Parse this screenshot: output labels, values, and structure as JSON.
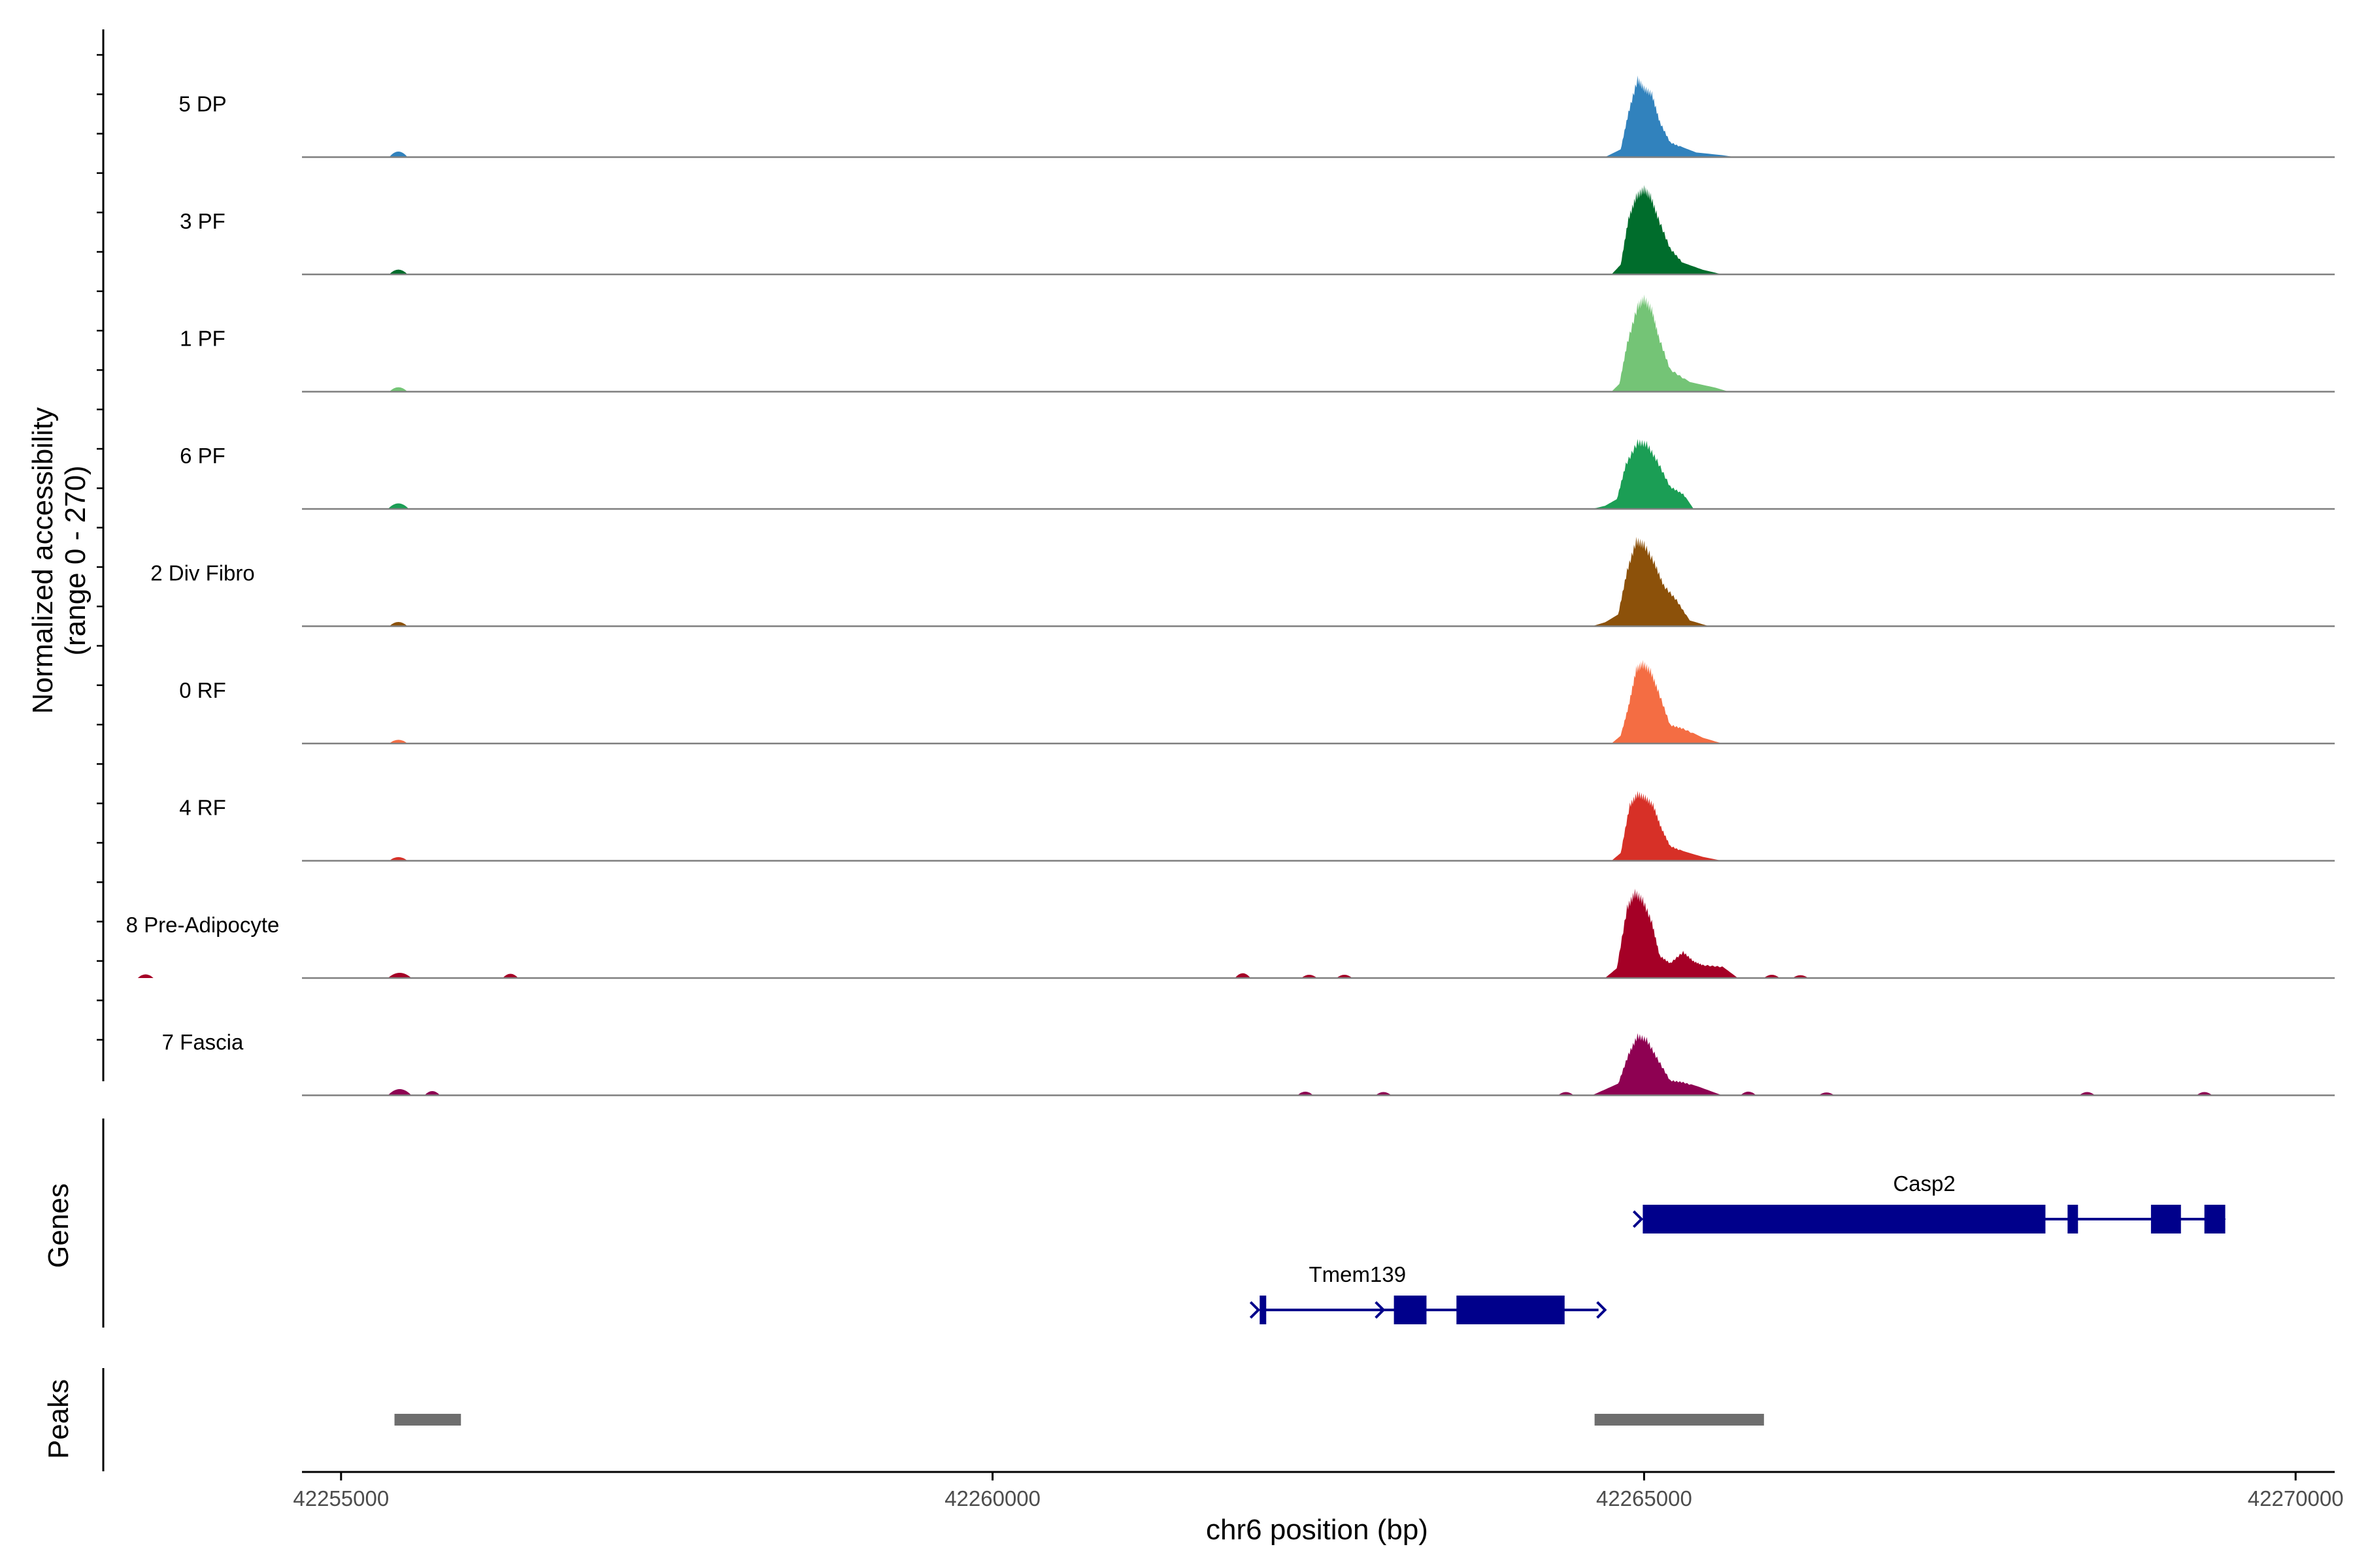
{
  "chart_data": {
    "type": "area",
    "title": "",
    "chromosome": "chr6",
    "xlabel": "chr6 position (bp)",
    "xlim": [
      42254700,
      42270300
    ],
    "x_ticks": [
      42255000,
      42260000,
      42265000,
      42270000
    ],
    "x_tick_labels": [
      "42255000",
      "42260000",
      "42265000",
      "42270000"
    ],
    "coverage": {
      "ylabel_line1": "Normalized accessibility",
      "ylabel_line2": "(range 0 - 270)",
      "ylim": [
        0,
        270
      ],
      "series": [
        {
          "name": "5 DP",
          "color": "#3182BD",
          "points": [
            [
              42264700,
              0
            ],
            [
              42264820,
              20
            ],
            [
              42264880,
              120
            ],
            [
              42264950,
              210
            ],
            [
              42265000,
              185
            ],
            [
              42265060,
              170
            ],
            [
              42265120,
              95
            ],
            [
              42265200,
              40
            ],
            [
              42265300,
              25
            ],
            [
              42265400,
              12
            ],
            [
              42265600,
              5
            ],
            [
              42265700,
              0
            ]
          ],
          "small_peaks": [
            [
              42255440,
              22,
              70
            ]
          ]
        },
        {
          "name": "3 PF",
          "color": "#006D2C",
          "points": [
            [
              42264750,
              0
            ],
            [
              42264820,
              25
            ],
            [
              42264880,
              150
            ],
            [
              42264940,
              210
            ],
            [
              42265000,
              230
            ],
            [
              42265050,
              210
            ],
            [
              42265110,
              150
            ],
            [
              42265200,
              70
            ],
            [
              42265300,
              30
            ],
            [
              42265450,
              12
            ],
            [
              42265600,
              0
            ]
          ],
          "small_peaks": [
            [
              42255440,
              18,
              70
            ]
          ]
        },
        {
          "name": "1 PF",
          "color": "#74C476",
          "points": [
            [
              42264750,
              0
            ],
            [
              42264810,
              20
            ],
            [
              42264870,
              130
            ],
            [
              42264950,
              230
            ],
            [
              42265000,
              250
            ],
            [
              42265060,
              220
            ],
            [
              42265110,
              150
            ],
            [
              42265200,
              60
            ],
            [
              42265350,
              25
            ],
            [
              42265550,
              10
            ],
            [
              42265650,
              0
            ]
          ],
          "small_peaks": [
            [
              42255440,
              16,
              70
            ]
          ]
        },
        {
          "name": "6 PF",
          "color": "#1B9E55",
          "points": [
            [
              42264600,
              0
            ],
            [
              42264700,
              8
            ],
            [
              42264790,
              25
            ],
            [
              42264860,
              120
            ],
            [
              42264950,
              180
            ],
            [
              42265020,
              175
            ],
            [
              42265100,
              130
            ],
            [
              42265200,
              60
            ],
            [
              42265300,
              40
            ],
            [
              42265380,
              0
            ]
          ],
          "small_peaks": [
            [
              42255440,
              22,
              80
            ]
          ]
        },
        {
          "name": "2 Div Fibro",
          "color": "#8C510A",
          "points": [
            [
              42264600,
              0
            ],
            [
              42264700,
              10
            ],
            [
              42264800,
              30
            ],
            [
              42264870,
              150
            ],
            [
              42264940,
              230
            ],
            [
              42265000,
              220
            ],
            [
              42265080,
              170
            ],
            [
              42265150,
              110
            ],
            [
              42265250,
              70
            ],
            [
              42265350,
              15
            ],
            [
              42265500,
              0
            ]
          ],
          "small_peaks": [
            [
              42255440,
              15,
              70
            ]
          ]
        },
        {
          "name": "0 RF",
          "color": "#F46D43",
          "points": [
            [
              42264750,
              0
            ],
            [
              42264820,
              20
            ],
            [
              42264880,
              100
            ],
            [
              42264940,
              200
            ],
            [
              42264990,
              215
            ],
            [
              42265050,
              195
            ],
            [
              42265110,
              140
            ],
            [
              42265200,
              50
            ],
            [
              42265300,
              40
            ],
            [
              42265450,
              15
            ],
            [
              42265600,
              0
            ]
          ],
          "small_peaks": [
            [
              42255440,
              12,
              70
            ]
          ]
        },
        {
          "name": "4 RF",
          "color": "#D73027",
          "points": [
            [
              42264750,
              0
            ],
            [
              42264820,
              20
            ],
            [
              42264890,
              150
            ],
            [
              42264950,
              180
            ],
            [
              42265010,
              170
            ],
            [
              42265070,
              150
            ],
            [
              42265130,
              90
            ],
            [
              42265200,
              40
            ],
            [
              42265300,
              25
            ],
            [
              42265450,
              10
            ],
            [
              42265600,
              0
            ]
          ],
          "small_peaks": [
            [
              42255440,
              12,
              70
            ]
          ]
        },
        {
          "name": "8 Pre-Adipocyte",
          "color": "#A50026",
          "points": [
            [
              42264700,
              0
            ],
            [
              42264790,
              25
            ],
            [
              42264870,
              190
            ],
            [
              42264930,
              230
            ],
            [
              42264990,
              210
            ],
            [
              42265060,
              150
            ],
            [
              42265120,
              60
            ],
            [
              42265200,
              40
            ],
            [
              42265300,
              70
            ],
            [
              42265380,
              45
            ],
            [
              42265450,
              35
            ],
            [
              42265600,
              30
            ],
            [
              42265720,
              0
            ]
          ],
          "small_peaks": [
            [
              42255450,
              20,
              90
            ],
            [
              42256300,
              15,
              60
            ],
            [
              42253500,
              12,
              60
            ],
            [
              42261920,
              18,
              60
            ],
            [
              42262430,
              10,
              60
            ],
            [
              42262700,
              10,
              60
            ],
            [
              42265980,
              10,
              60
            ],
            [
              42266200,
              8,
              60
            ]
          ]
        },
        {
          "name": "7 Fascia",
          "color": "#8E0152",
          "points": [
            [
              42264600,
              0
            ],
            [
              42264700,
              15
            ],
            [
              42264800,
              30
            ],
            [
              42264880,
              110
            ],
            [
              42264950,
              160
            ],
            [
              42265020,
              150
            ],
            [
              42265100,
              100
            ],
            [
              42265200,
              40
            ],
            [
              42265300,
              35
            ],
            [
              42265420,
              22
            ],
            [
              42265600,
              0
            ]
          ],
          "small_peaks": [
            [
              42255450,
              25,
              90
            ],
            [
              42255700,
              15,
              60
            ],
            [
              42262400,
              12,
              60
            ],
            [
              42263000,
              10,
              60
            ],
            [
              42264400,
              10,
              60
            ],
            [
              42265800,
              12,
              60
            ],
            [
              42266400,
              8,
              60
            ],
            [
              42268400,
              10,
              60
            ],
            [
              42269300,
              10,
              60
            ]
          ]
        }
      ]
    },
    "genes": {
      "label": "Genes",
      "color": "#00008B",
      "items": [
        {
          "name": "Casp2",
          "start": 42264990,
          "end": 42269400,
          "strand": "+",
          "exons": [
            [
              42264990,
              42268080
            ],
            [
              42268250,
              42268330
            ],
            [
              42268890,
              42269120
            ],
            [
              42269300,
              42269460
            ]
          ]
        },
        {
          "name": "Tmem139",
          "start": 42262050,
          "end": 42264650,
          "strand": "+",
          "exons": [
            [
              42262050,
              42262100
            ],
            [
              42263080,
              42263330
            ],
            [
              42263560,
              42264390
            ]
          ]
        }
      ]
    },
    "peaks": {
      "label": "Peaks",
      "color": "#6E6E6E",
      "regions": [
        [
          42255410,
          42255920
        ],
        [
          42264620,
          42265920
        ]
      ]
    }
  }
}
